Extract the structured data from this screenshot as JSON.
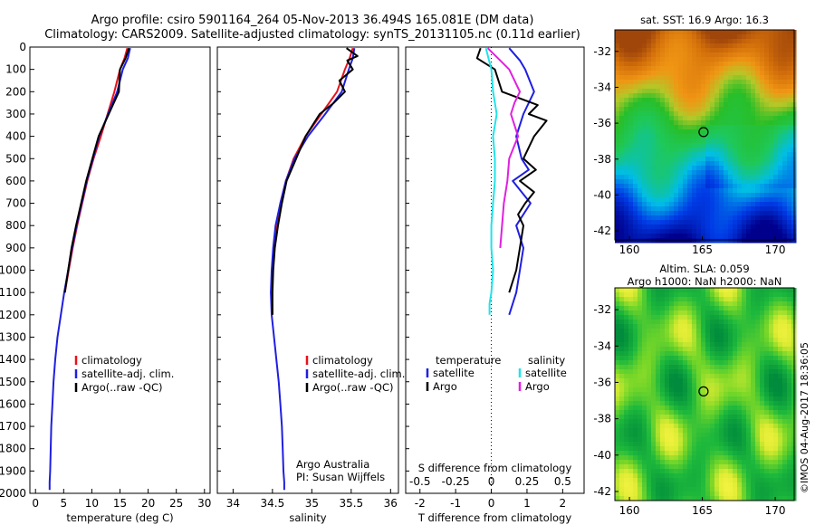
{
  "header": {
    "line1": "Argo profile: csiro 5901164_264 05-Nov-2013 36.494S 165.081E (DM data)",
    "line2": "Climatology: CARS2009. Satellite-adjusted climatology: synTS_20131105.nc (0.11d earlier)"
  },
  "side_note": "©IMOS 04-Aug-2017 18:36:05",
  "colors": {
    "climatology": "#e8111b",
    "satellite": "#1f1fe0",
    "argo": "#000000",
    "sal_satellite": "#22e3e8",
    "sal_argo": "#e020e0"
  },
  "chart_data": [
    {
      "type": "line",
      "xlabel": "temperature (deg C)",
      "xlim": [
        -1,
        31
      ],
      "xticks": [
        "0",
        "5",
        "10",
        "15",
        "20",
        "25",
        "30"
      ],
      "ylim": [
        2000,
        0
      ],
      "yticks": [
        "0",
        "100",
        "200",
        "300",
        "400",
        "500",
        "600",
        "700",
        "800",
        "900",
        "1000",
        "1100",
        "1200",
        "1300",
        "1400",
        "1500",
        "1600",
        "1700",
        "1800",
        "1900",
        "2000"
      ],
      "legend": [
        "climatology",
        "satellite-adj. clim.",
        "Argo(..raw -QC)"
      ],
      "series": [
        {
          "name": "climatology",
          "color": "#e8111b",
          "x": [
            16.3,
            15.8,
            15.0,
            14.0,
            12.8,
            11.6,
            10.3,
            9.2,
            8.3,
            7.4,
            6.6,
            5.9,
            5.2
          ],
          "y": [
            5,
            50,
            100,
            200,
            300,
            400,
            500,
            600,
            700,
            800,
            900,
            1000,
            1100
          ]
        },
        {
          "name": "satellite-adj. clim.",
          "color": "#1f1fe0",
          "x": [
            16.8,
            16.4,
            15.5,
            14.5,
            12.9,
            11.3,
            10.2,
            9.1,
            8.2,
            7.3,
            6.5,
            5.8,
            5.1,
            4.5,
            3.9,
            3.5,
            3.2,
            3.0,
            2.8,
            2.7,
            2.6,
            2.5,
            2.5
          ],
          "y": [
            5,
            50,
            100,
            200,
            300,
            400,
            500,
            600,
            700,
            800,
            900,
            1000,
            1100,
            1200,
            1300,
            1400,
            1500,
            1600,
            1700,
            1800,
            1900,
            1950,
            1985
          ]
        },
        {
          "name": "Argo(..raw -QC)",
          "color": "#000000",
          "x": [
            16.6,
            16.0,
            15.0,
            14.8,
            13.0,
            11.2,
            10.1,
            9.0,
            8.1,
            7.2,
            6.4,
            5.8,
            5.2
          ],
          "y": [
            5,
            50,
            100,
            200,
            300,
            400,
            500,
            600,
            700,
            800,
            900,
            1000,
            1100
          ]
        }
      ]
    },
    {
      "type": "line",
      "xlabel": "salinity",
      "xlim": [
        33.8,
        36.1
      ],
      "xticks": [
        "34",
        "34.5",
        "35",
        "35.5",
        "36"
      ],
      "ylim": [
        2000,
        0
      ],
      "legend": [
        "climatology",
        "satellite-adj. clim.",
        "Argo(..raw -QC)"
      ],
      "annotation": [
        "Argo Australia",
        "PI: Susan Wijffels"
      ],
      "series": [
        {
          "name": "climatology",
          "color": "#e8111b",
          "x": [
            35.52,
            35.48,
            35.42,
            35.32,
            35.12,
            34.92,
            34.77,
            34.67,
            34.6,
            34.55,
            34.52,
            34.5,
            34.49,
            34.5
          ],
          "y": [
            5,
            50,
            100,
            200,
            300,
            400,
            500,
            600,
            700,
            800,
            900,
            1000,
            1100,
            1200
          ]
        },
        {
          "name": "satellite-adj. clim.",
          "color": "#1f1fe0",
          "x": [
            35.54,
            35.52,
            35.47,
            35.38,
            35.17,
            34.95,
            34.78,
            34.67,
            34.6,
            34.54,
            34.51,
            34.49,
            34.48,
            34.49,
            34.52,
            34.55,
            34.58,
            34.6,
            34.62,
            34.63,
            34.64,
            34.65,
            34.65
          ],
          "y": [
            5,
            50,
            100,
            200,
            300,
            400,
            500,
            600,
            700,
            800,
            900,
            1000,
            1100,
            1200,
            1300,
            1400,
            1500,
            1600,
            1700,
            1800,
            1900,
            1950,
            1985
          ]
        },
        {
          "name": "Argo(..raw -QC)",
          "color": "#000000",
          "x": [
            35.44,
            35.58,
            35.45,
            35.52,
            35.35,
            35.42,
            35.28,
            35.1,
            34.92,
            34.8,
            34.68,
            34.62,
            34.57,
            34.53,
            34.51,
            34.5,
            34.5
          ],
          "y": [
            5,
            40,
            60,
            100,
            150,
            200,
            250,
            300,
            400,
            500,
            600,
            700,
            800,
            900,
            1000,
            1100,
            1200
          ]
        }
      ]
    },
    {
      "type": "line",
      "xlabel": "T difference from climatology",
      "xlabel2": "S difference from climatology",
      "xlim": [
        -2.4,
        2.6
      ],
      "xticks": [
        "-2",
        "-1",
        "0",
        "1",
        "2"
      ],
      "xticks2": [
        "-0.5",
        "-0.25",
        "0",
        "0.25",
        "0.5"
      ],
      "ylim": [
        2000,
        0
      ],
      "legend_headers": [
        "temperature",
        "salinity"
      ],
      "legend": [
        "satellite",
        "Argo",
        "satellite",
        "Argo"
      ],
      "series": [
        {
          "name": "satellite",
          "color": "#1f1fe0",
          "x": [
            0.5,
            0.8,
            0.95,
            1.2,
            0.9,
            0.7,
            0.85,
            1.05,
            0.6,
            1.1,
            0.7,
            0.9,
            0.8,
            0.7,
            0.5
          ],
          "y": [
            5,
            60,
            100,
            200,
            300,
            400,
            500,
            550,
            600,
            700,
            800,
            900,
            1000,
            1100,
            1200
          ]
        },
        {
          "name": "Argo",
          "color": "#000000",
          "x": [
            -0.3,
            -0.4,
            0.1,
            0.3,
            1.3,
            1.05,
            1.55,
            1.2,
            0.9,
            1.25,
            0.8,
            1.2,
            0.95,
            0.75,
            0.9,
            0.8,
            0.7,
            0.5
          ],
          "y": [
            5,
            50,
            100,
            200,
            260,
            300,
            330,
            400,
            500,
            550,
            600,
            650,
            700,
            750,
            800,
            900,
            1000,
            1100
          ]
        },
        {
          "name": "satellite",
          "color": "#22e3e8",
          "x": [
            -0.15,
            0.0,
            0.05,
            0.15,
            0.05,
            0.1,
            0.1,
            0.05,
            0.0,
            0.0,
            0.05,
            0.0,
            -0.05,
            -0.05
          ],
          "y": [
            5,
            100,
            200,
            300,
            400,
            500,
            600,
            700,
            800,
            900,
            1000,
            1100,
            1150,
            1200
          ]
        },
        {
          "name": "Argo",
          "color": "#e020e0",
          "x": [
            -0.1,
            0.25,
            0.5,
            0.8,
            0.65,
            0.55,
            0.75,
            0.5,
            0.45,
            0.35,
            0.3,
            0.25
          ],
          "y": [
            5,
            60,
            100,
            200,
            250,
            300,
            400,
            500,
            600,
            700,
            800,
            900
          ]
        }
      ]
    },
    {
      "type": "heatmap",
      "title": "sat. SST: 16.9 Argo: 16.3",
      "xlim": [
        159,
        171.3
      ],
      "ylim": [
        -42.5,
        -30.8
      ],
      "xticks": [
        "160",
        "165",
        "170"
      ],
      "yticks": [
        "-32",
        "-34",
        "-36",
        "-38",
        "-40",
        "-42"
      ],
      "marker": {
        "x": 165.081,
        "y": -36.494
      }
    },
    {
      "type": "heatmap",
      "title": "Altim. SLA: 0.059",
      "subtitle": "Argo h1000: NaN h2000: NaN",
      "xlim": [
        159,
        171.3
      ],
      "ylim": [
        -42.5,
        -30.8
      ],
      "xticks": [
        "160",
        "165",
        "170"
      ],
      "yticks": [
        "-32",
        "-34",
        "-36",
        "-38",
        "-40",
        "-42"
      ],
      "marker": {
        "x": 165.081,
        "y": -36.494
      }
    }
  ]
}
